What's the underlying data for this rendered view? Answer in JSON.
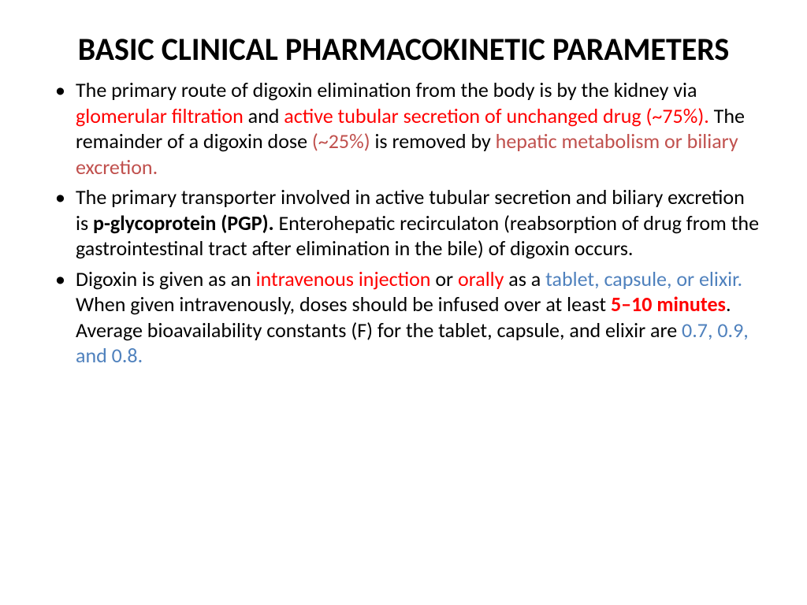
{
  "slide": {
    "title": "BASIC CLINICAL PHARMACOKINETIC PARAMETERS",
    "colors": {
      "text": "#000000",
      "red": "#ff0000",
      "red_muted": "#c0504d",
      "blue": "#4f81bd",
      "background": "#ffffff"
    },
    "typography": {
      "title_fontsize": 40,
      "title_weight": 700,
      "body_fontsize": 26,
      "font_family": "Calibri"
    },
    "bullets": [
      {
        "runs": [
          {
            "t": "The primary route of digoxin elimination from the body is by the kidney via "
          },
          {
            "t": "glomerular filtration ",
            "cls": "red"
          },
          {
            "t": "and "
          },
          {
            "t": "active tubular secretion of unchanged drug (~75%). ",
            "cls": "red"
          },
          {
            "t": "The remainder of a digoxin dose "
          },
          {
            "t": "(~25%) ",
            "cls": "red-muted"
          },
          {
            "t": "is removed by "
          },
          {
            "t": "hepatic metabolism or biliary excretion.",
            "cls": "red-muted"
          }
        ]
      },
      {
        "runs": [
          {
            "t": "The primary transporter involved in active tubular secretion and biliary excretion is "
          },
          {
            "t": "p-glycoprotein (PGP). ",
            "cls": "bold"
          },
          {
            "t": "Enterohepatic recirculaton (reabsorption of drug from the gastrointestinal tract after elimination in the bile) of digoxin occurs."
          }
        ]
      },
      {
        "runs": [
          {
            "t": "Digoxin is given as an "
          },
          {
            "t": "intravenous injection ",
            "cls": "red"
          },
          {
            "t": "or "
          },
          {
            "t": "orally ",
            "cls": "red"
          },
          {
            "t": "as a "
          },
          {
            "t": "tablet, capsule, or elixir. ",
            "cls": "blue"
          },
          {
            "t": "When given intravenously, doses should be infused over at least "
          },
          {
            "t": "5–10 minutes",
            "cls": "red bold"
          },
          {
            "t": ". Average bioavailability constants (F) for the tablet, capsule, and elixir are "
          },
          {
            "t": "0.7, 0.9, and 0.8.",
            "cls": "blue"
          }
        ]
      }
    ]
  }
}
